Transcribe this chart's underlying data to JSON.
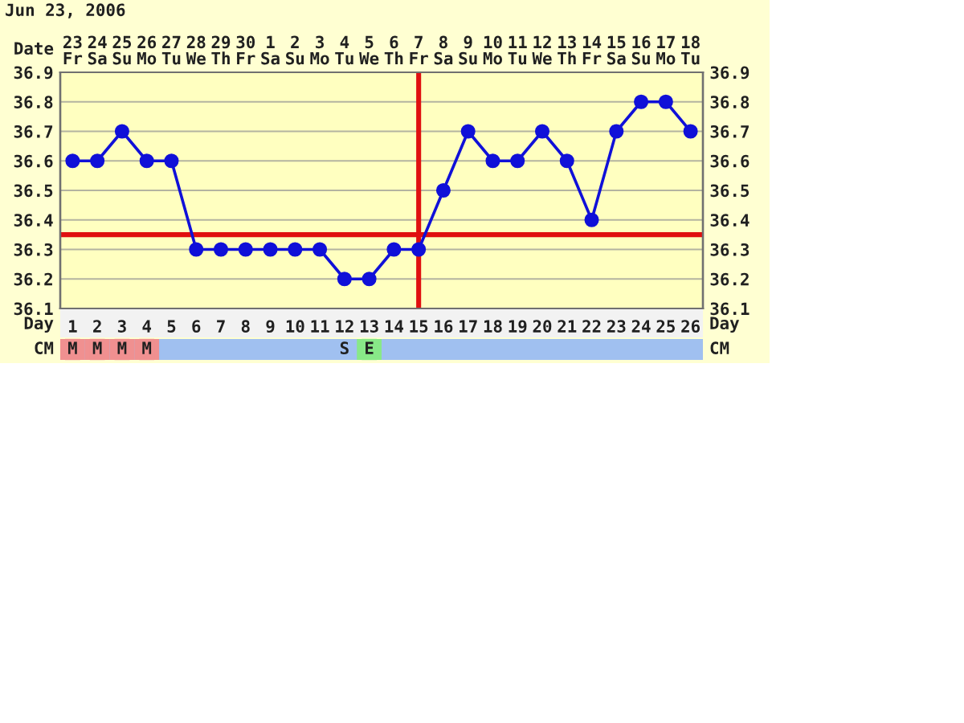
{
  "chart_data": [
    {
      "type": "line",
      "title": "Jun 23, 2006",
      "xlabel": "Day",
      "x2label": "Date",
      "categories": [
        "1",
        "2",
        "3",
        "4",
        "5",
        "6",
        "7",
        "8",
        "9",
        "10",
        "11",
        "12",
        "13",
        "14",
        "15",
        "16",
        "17",
        "18",
        "19",
        "20",
        "21",
        "22",
        "23",
        "24",
        "25",
        "26"
      ],
      "values": [
        36.6,
        36.6,
        36.7,
        36.6,
        36.6,
        36.3,
        36.3,
        36.3,
        36.3,
        36.3,
        36.3,
        36.2,
        36.2,
        36.3,
        36.3,
        36.5,
        36.7,
        36.6,
        36.6,
        36.7,
        36.6,
        36.4,
        36.7,
        36.8,
        36.8,
        36.7
      ],
      "color": "#1010d8",
      "marker": "circle",
      "line_style": "solid",
      "grid": true,
      "x2lim": [
        "2006-06-22T12:00",
        "2006-07-18T12:00"
      ],
      "x2ticks": [
        {
          "value": "2006-06-23",
          "label": "23\nFr"
        },
        {
          "value": "2006-06-24",
          "label": "24\nSa"
        },
        {
          "value": "2006-06-25",
          "label": "25\nSu"
        },
        {
          "value": "2006-06-26",
          "label": "26\nMo"
        },
        {
          "value": "2006-06-27",
          "label": "27\nTu"
        },
        {
          "value": "2006-06-28",
          "label": "28\nWe"
        },
        {
          "value": "2006-06-29",
          "label": "29\nTh"
        },
        {
          "value": "2006-06-30",
          "label": "30\nFr"
        },
        {
          "value": "2006-07-01",
          "label": "1\nSa"
        },
        {
          "value": "2006-07-02",
          "label": "2\nSu"
        },
        {
          "value": "2006-07-03",
          "label": "3\nMo"
        },
        {
          "value": "2006-07-04",
          "label": "4\nTu"
        },
        {
          "value": "2006-07-05",
          "label": "5\nWe"
        },
        {
          "value": "2006-07-06",
          "label": "6\nTh"
        },
        {
          "value": "2006-07-07",
          "label": "7\nFr"
        },
        {
          "value": "2006-07-08",
          "label": "8\nSa"
        },
        {
          "value": "2006-07-09",
          "label": "9\nSu"
        },
        {
          "value": "2006-07-10",
          "label": "10\nMo"
        },
        {
          "value": "2006-07-11",
          "label": "11\nTu"
        },
        {
          "value": "2006-07-12",
          "label": "12\nWe"
        },
        {
          "value": "2006-07-13",
          "label": "13\nTh"
        },
        {
          "value": "2006-07-14",
          "label": "14\nFr"
        },
        {
          "value": "2006-07-15",
          "label": "15\nSa"
        },
        {
          "value": "2006-07-16",
          "label": "16\nSu"
        },
        {
          "value": "2006-07-17",
          "label": "17\nMo"
        },
        {
          "value": "2006-07-18",
          "label": "18\nTu"
        }
      ],
      "ylim": [
        36.1,
        36.9
      ],
      "yticks": [
        36.1,
        36.2,
        36.3,
        36.4,
        36.5,
        36.6,
        36.7,
        36.8,
        36.9
      ],
      "y2lim": [
        36.1,
        36.9
      ],
      "y2ticks": [
        36.1,
        36.2,
        36.3,
        36.4,
        36.5,
        36.6,
        36.7,
        36.8,
        36.9
      ],
      "ref_lines": [
        {
          "axis": "y",
          "value": 36.35,
          "color": "#e01010"
        },
        {
          "axis": "x",
          "value": "15",
          "color": "#e01010"
        }
      ]
    },
    {
      "type": "other",
      "ylabel": "CM",
      "y2label": "CM",
      "categories": [
        "M",
        "M",
        "M",
        "M",
        null,
        null,
        null,
        null,
        null,
        null,
        null,
        "S",
        "E",
        null,
        null,
        null,
        null,
        null,
        null,
        null,
        null,
        null,
        null,
        null,
        null,
        null
      ],
      "colors": [
        "#f09090",
        "#f09090",
        "#f09090",
        "#f09090",
        null,
        null,
        null,
        null,
        null,
        null,
        null,
        null,
        "#88e888",
        null,
        null,
        null,
        null,
        null,
        null,
        null,
        null,
        null,
        null,
        null,
        null,
        null
      ]
    }
  ]
}
